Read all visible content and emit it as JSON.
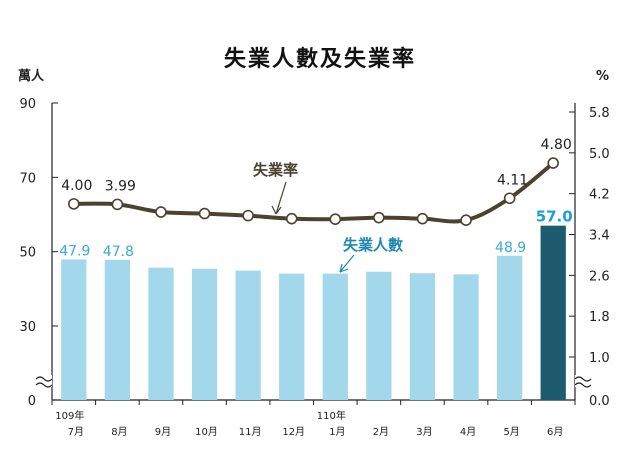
{
  "chart_data": {
    "type": "bar+line",
    "title": "失業人數及失業率",
    "left_axis": {
      "unit": "萬人",
      "ticks": [
        "0",
        "30",
        "50",
        "70",
        "90"
      ],
      "min": 0,
      "max": 90,
      "break": true
    },
    "right_axis": {
      "unit": "%",
      "ticks": [
        "0.0",
        "1.0",
        "1.8",
        "2.6",
        "3.4",
        "4.2",
        "5.0",
        "5.8"
      ],
      "min": 0,
      "max": 5.8,
      "break": true
    },
    "year_labels": [
      {
        "label": "109年",
        "at_index": 0
      },
      {
        "label": "110年",
        "at_index": 6
      }
    ],
    "categories": [
      "7月",
      "8月",
      "9月",
      "10月",
      "11月",
      "12月",
      "1月",
      "2月",
      "3月",
      "4月",
      "5月",
      "6月"
    ],
    "series": [
      {
        "name": "失業人數",
        "type": "bar",
        "axis": "left",
        "color": "#a3d8ec",
        "highlight_color": "#1f5b6e",
        "highlight_index": 11,
        "values": [
          47.9,
          47.8,
          45.7,
          45.4,
          44.9,
          44.1,
          44.1,
          44.6,
          44.2,
          43.9,
          48.9,
          57.0
        ],
        "labels": [
          "47.9",
          "47.8",
          "",
          "",
          "",
          "",
          "",
          "",
          "",
          "",
          "48.9",
          "57.0"
        ]
      },
      {
        "name": "失業率",
        "type": "line",
        "axis": "right",
        "color": "#4a4332",
        "values": [
          4.0,
          3.99,
          3.84,
          3.81,
          3.77,
          3.71,
          3.7,
          3.73,
          3.71,
          3.68,
          4.11,
          4.8
        ],
        "labels": [
          "4.00",
          "3.99",
          "",
          "",
          "",
          "",
          "",
          "",
          "",
          "",
          "4.11",
          "4.80"
        ]
      }
    ]
  }
}
